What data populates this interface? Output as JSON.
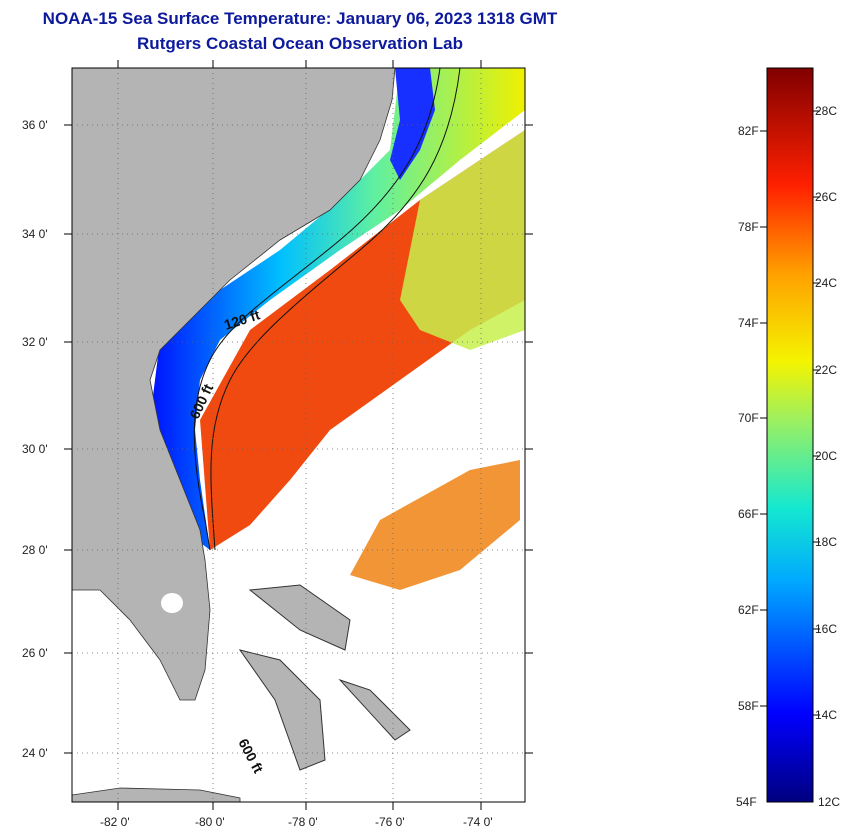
{
  "title": {
    "line1": "NOAA-15 Sea Surface Temperature:  January 06, 2023 1318 GMT",
    "line2": "Rutgers Coastal Ocean Observation Lab"
  },
  "map": {
    "lat_labels": [
      "36 0'",
      "34 0'",
      "32 0'",
      "30 0'",
      "28 0'",
      "26 0'",
      "24 0'"
    ],
    "lon_labels": [
      "-82 0'",
      "-80 0'",
      "-78 0'",
      "-76 0'",
      "-74 0'"
    ],
    "contour_labels": [
      "120 ft",
      "600 ft",
      "600 ft"
    ],
    "colors": {
      "land": "#b4b4b4",
      "ocean_none": "#ffffff",
      "gulf_stream": "#f04a10"
    }
  },
  "colorbar": {
    "fahrenheit": [
      "82F",
      "78F",
      "74F",
      "70F",
      "66F",
      "62F",
      "58F",
      "54F"
    ],
    "celsius": [
      "28C",
      "26C",
      "24C",
      "22C",
      "20C",
      "18C",
      "16C",
      "14C",
      "12C"
    ]
  }
}
